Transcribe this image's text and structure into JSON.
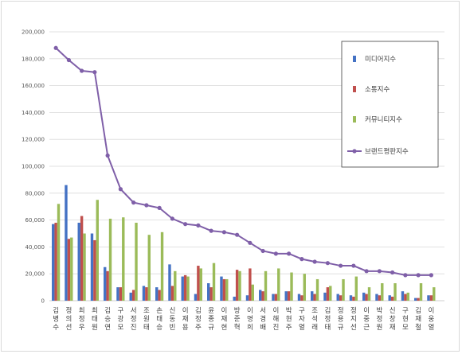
{
  "chart_data": {
    "type": "bar",
    "title": "",
    "xlabel": "",
    "ylabel": "",
    "ylim": [
      0,
      200000
    ],
    "yticks": [
      0,
      20000,
      40000,
      60000,
      80000,
      100000,
      120000,
      140000,
      160000,
      180000,
      200000
    ],
    "ytick_labels": [
      "0",
      "20,000",
      "40,000",
      "60,000",
      "80,000",
      "100,000",
      "120,000",
      "140,000",
      "160,000",
      "180,000",
      "200,000"
    ],
    "grid": true,
    "legend_position": "right",
    "categories": [
      "김병수",
      "정의선",
      "최정우",
      "최태원",
      "김승연",
      "구광모",
      "서정진",
      "조원태",
      "손태승",
      "신동빈",
      "이재용",
      "김정주",
      "윤종규",
      "이재현",
      "방준혁",
      "이명희",
      "서경배",
      "이해진",
      "박현주",
      "구자열",
      "조석래",
      "김정태",
      "정용규",
      "정지선",
      "이중근",
      "박정원",
      "신창재",
      "구현모",
      "김재철",
      "이웅열"
    ],
    "series": [
      {
        "name": "미디어지수",
        "type": "bar",
        "color": "#4472c4",
        "values": [
          57000,
          86000,
          58000,
          50000,
          25000,
          10000,
          6000,
          11000,
          10000,
          27000,
          18000,
          5000,
          13000,
          18000,
          3000,
          4000,
          8000,
          5000,
          7000,
          5000,
          7000,
          6000,
          5000,
          4000,
          6000,
          5000,
          4000,
          7000,
          2000,
          4000
        ]
      },
      {
        "name": "소통지수",
        "type": "bar",
        "color": "#c0504d",
        "values": [
          58000,
          46000,
          63000,
          45000,
          22000,
          10000,
          8000,
          10000,
          8000,
          11000,
          19000,
          26000,
          10000,
          16000,
          23000,
          24000,
          7000,
          5000,
          7000,
          4000,
          5000,
          10000,
          4000,
          3000,
          5000,
          4000,
          3000,
          5000,
          2000,
          4000
        ]
      },
      {
        "name": "커뮤니티지수",
        "type": "bar",
        "color": "#9bbb59",
        "values": [
          72000,
          47000,
          50000,
          75000,
          61000,
          62000,
          58000,
          49000,
          51000,
          22000,
          18000,
          24000,
          28000,
          16000,
          22000,
          12000,
          22000,
          24000,
          21000,
          20000,
          16000,
          11000,
          16000,
          18000,
          10000,
          13000,
          13000,
          6000,
          13000,
          10000
        ]
      },
      {
        "name": "브랜드평판지수",
        "type": "line",
        "color": "#7f5fa8",
        "values": [
          188000,
          179000,
          171000,
          170000,
          108000,
          83000,
          73000,
          71000,
          69000,
          61000,
          57000,
          56000,
          52000,
          51000,
          49000,
          43000,
          37000,
          35000,
          35000,
          31000,
          29000,
          28000,
          26000,
          26000,
          22000,
          22000,
          21000,
          19000,
          19000,
          19000
        ]
      }
    ]
  }
}
